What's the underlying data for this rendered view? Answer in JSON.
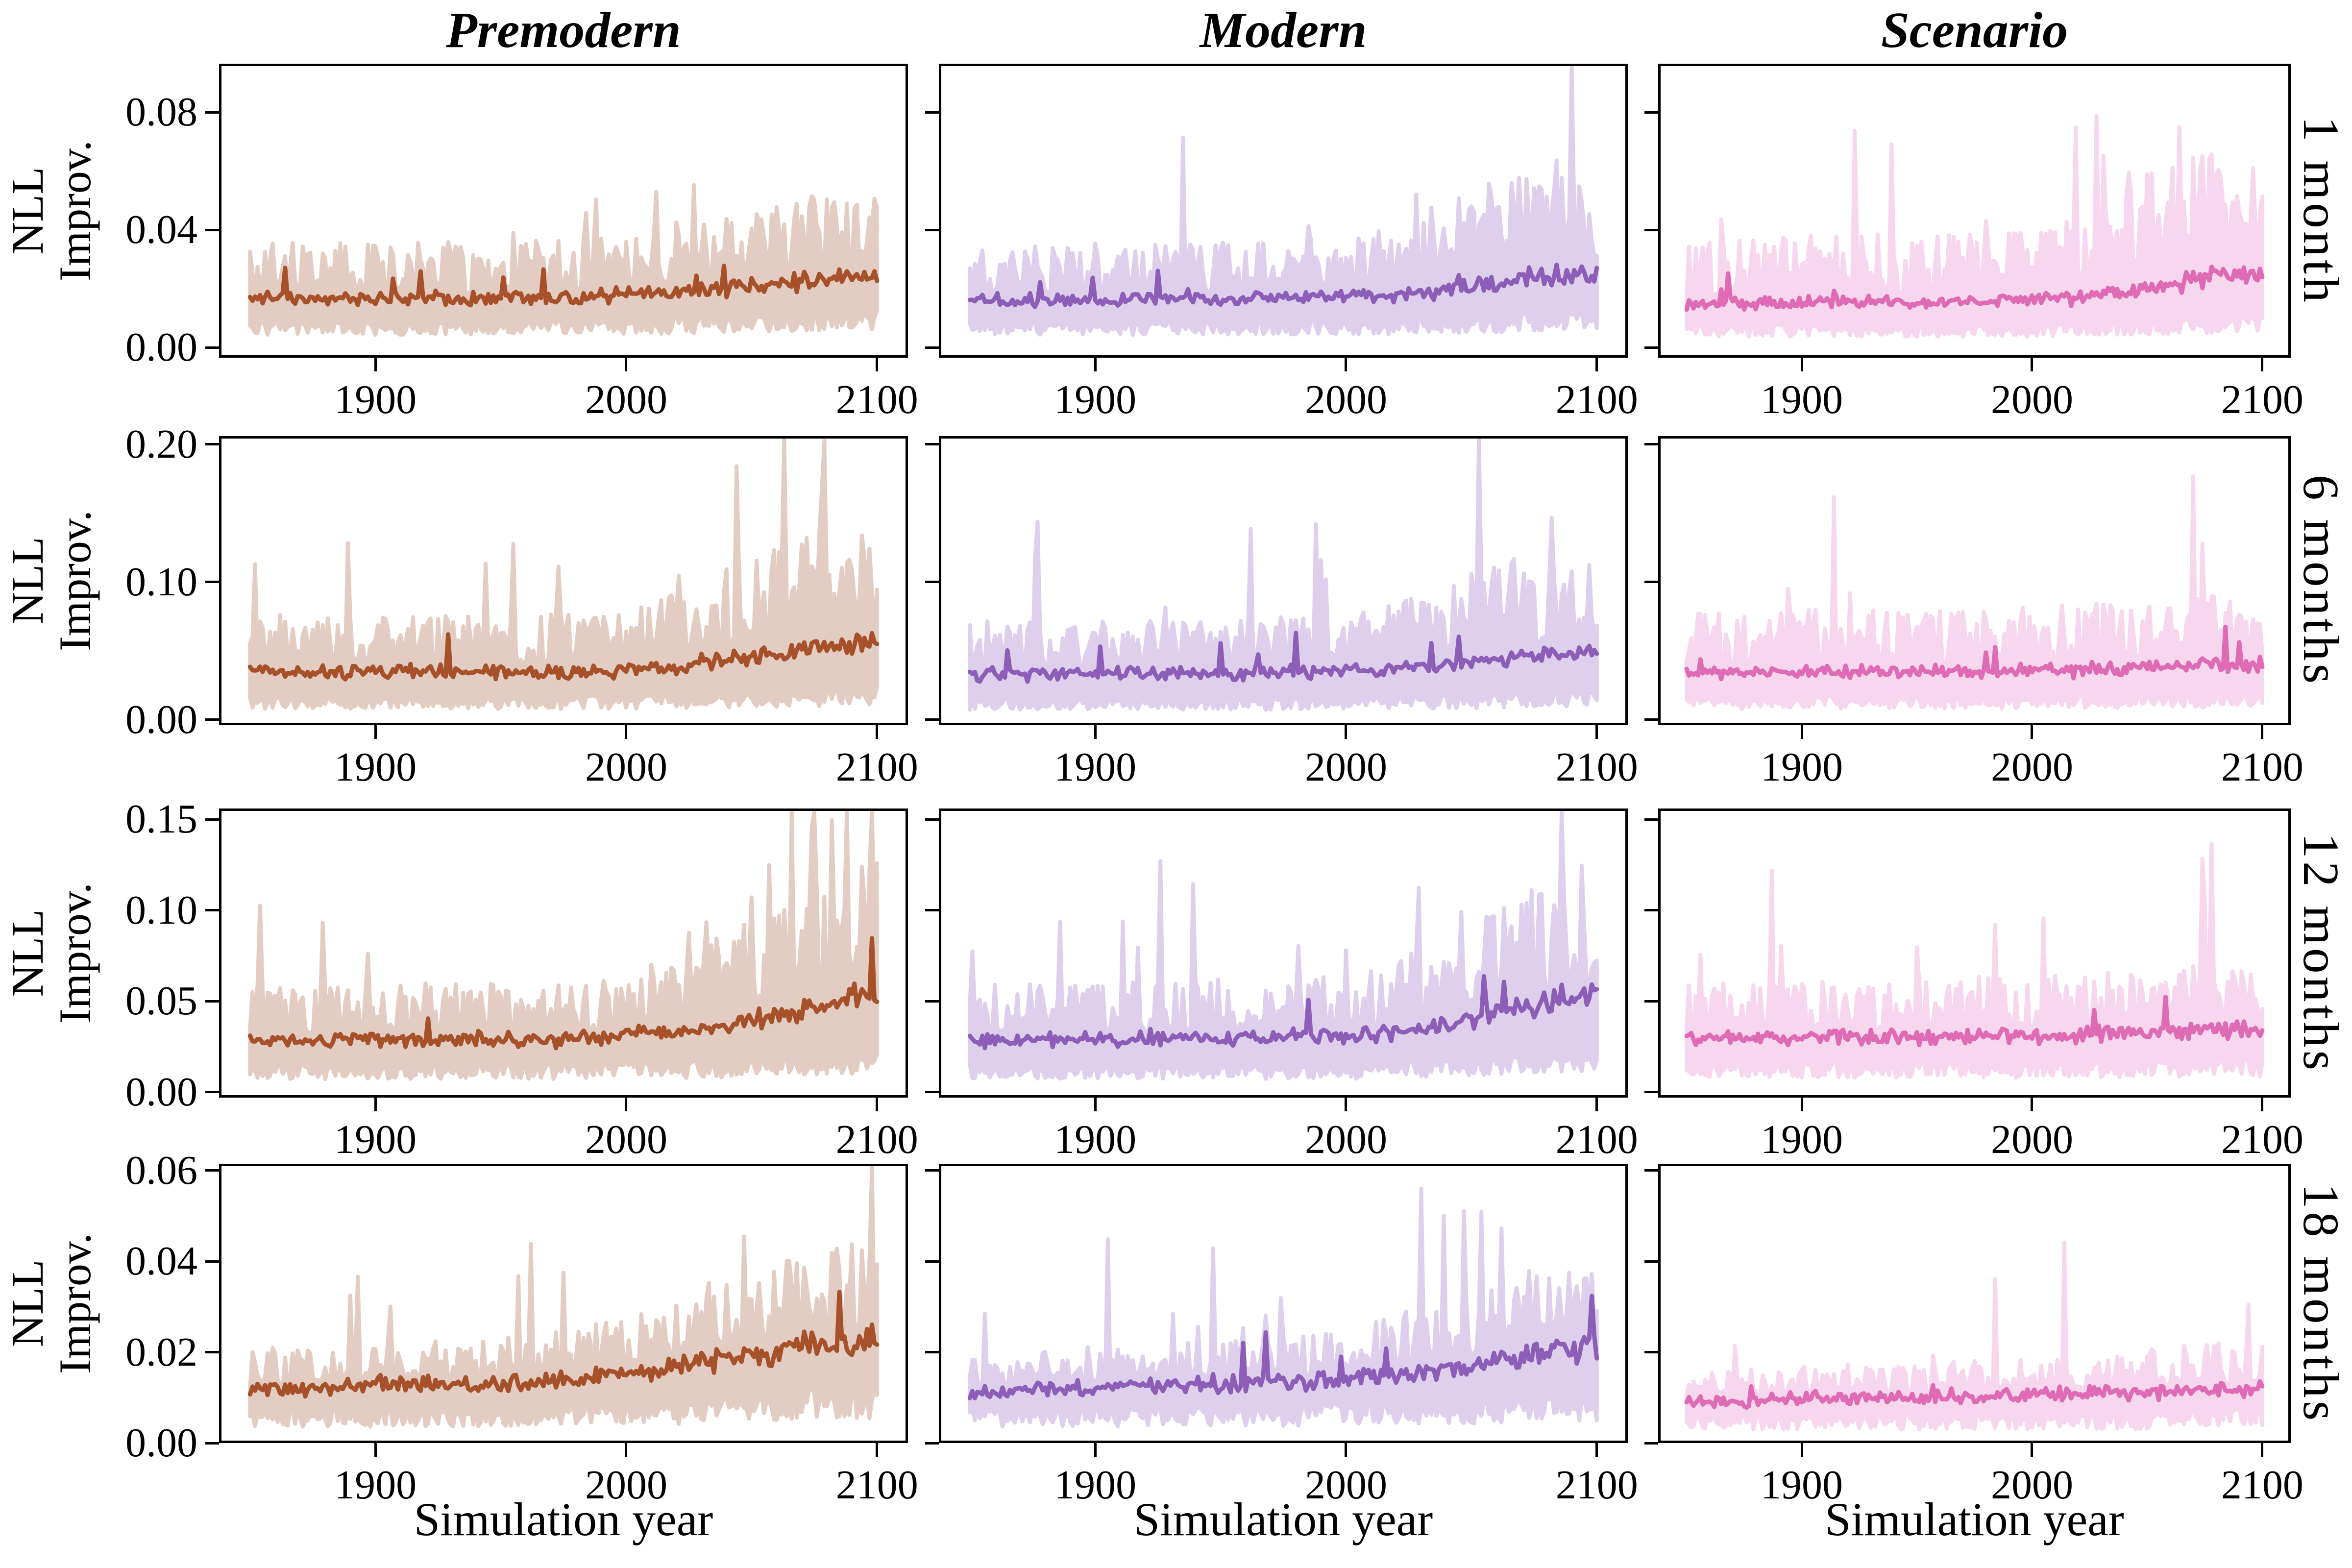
{
  "figure": {
    "background": "#ffffff",
    "text_color": "#000000",
    "ylabel": "NLL\nImprov.",
    "xlabel": "Simulation year",
    "columns": [
      {
        "label": "Premodern",
        "line_color": "#a6512a",
        "band_color": "#e3cdc3"
      },
      {
        "label": "Modern",
        "line_color": "#8c5eb7",
        "band_color": "#ded0ed"
      },
      {
        "label": "Scenario",
        "line_color": "#de6bb4",
        "band_color": "#f6d7ee"
      }
    ],
    "rows": [
      {
        "label": "1 month",
        "ytick_labels": [
          "0.00",
          "0.04",
          "0.08"
        ],
        "ytick_values": [
          0,
          0.04,
          0.08
        ],
        "ylim": [
          -0.0035,
          0.0965
        ]
      },
      {
        "label": "6 months",
        "ytick_labels": [
          "0.00",
          "0.10",
          "0.20"
        ],
        "ytick_values": [
          0,
          0.1,
          0.2
        ],
        "ylim": [
          -0.004,
          0.206
        ]
      },
      {
        "label": "12 months",
        "ytick_labels": [
          "0.00",
          "0.05",
          "0.10",
          "0.15"
        ],
        "ytick_values": [
          0,
          0.05,
          0.1,
          0.15
        ],
        "ylim": [
          -0.003,
          0.156
        ]
      },
      {
        "label": "18 months",
        "ytick_labels": [
          "0.00",
          "0.02",
          "0.04",
          "0.06"
        ],
        "ytick_values": [
          0,
          0.02,
          0.04,
          0.06
        ],
        "ylim": [
          0,
          0.0615
        ]
      }
    ],
    "xticks": {
      "labels": [
        "1900",
        "2000",
        "2100"
      ],
      "values": [
        1900,
        2000,
        2100
      ]
    },
    "xrange": [
      1850,
      2100
    ]
  },
  "chart_data": {
    "type": "line",
    "title": "",
    "xlabel": "Simulation year",
    "ylabel": "NLL Improv.",
    "legend": "none",
    "grid": false,
    "layout": "4 rows (forecast lead times) x 3 columns (eras); noisy annual mean line with shaded min-max band",
    "x_control_points": [
      1850,
      1875,
      1900,
      1925,
      1950,
      1975,
      2000,
      2025,
      2050,
      2075,
      2100
    ],
    "panels": [
      {
        "row": "1 month",
        "column": "Premodern",
        "mean": [
          0.017,
          0.017,
          0.017,
          0.017,
          0.017,
          0.017,
          0.018,
          0.019,
          0.021,
          0.023,
          0.025
        ],
        "band_low": [
          0.007,
          0.007,
          0.007,
          0.007,
          0.007,
          0.007,
          0.007,
          0.008,
          0.008,
          0.009,
          0.01
        ],
        "band_high": [
          0.033,
          0.033,
          0.033,
          0.034,
          0.033,
          0.034,
          0.035,
          0.038,
          0.043,
          0.048,
          0.047
        ]
      },
      {
        "row": "1 month",
        "column": "Modern",
        "mean": [
          0.016,
          0.016,
          0.016,
          0.017,
          0.016,
          0.017,
          0.017,
          0.018,
          0.021,
          0.024,
          0.025
        ],
        "band_low": [
          0.007,
          0.007,
          0.007,
          0.007,
          0.007,
          0.007,
          0.007,
          0.007,
          0.008,
          0.009,
          0.01
        ],
        "band_high": [
          0.032,
          0.032,
          0.033,
          0.033,
          0.033,
          0.034,
          0.034,
          0.04,
          0.052,
          0.063,
          0.052
        ]
      },
      {
        "row": "1 month",
        "column": "Scenario",
        "mean": [
          0.015,
          0.015,
          0.015,
          0.016,
          0.015,
          0.016,
          0.016,
          0.017,
          0.02,
          0.024,
          0.026
        ],
        "band_low": [
          0.006,
          0.006,
          0.006,
          0.006,
          0.006,
          0.006,
          0.006,
          0.007,
          0.007,
          0.008,
          0.009
        ],
        "band_high": [
          0.035,
          0.035,
          0.036,
          0.036,
          0.036,
          0.037,
          0.037,
          0.042,
          0.055,
          0.066,
          0.058
        ]
      },
      {
        "row": "6 months",
        "column": "Premodern",
        "mean": [
          0.035,
          0.034,
          0.035,
          0.035,
          0.034,
          0.035,
          0.036,
          0.04,
          0.046,
          0.052,
          0.056
        ],
        "band_low": [
          0.013,
          0.013,
          0.013,
          0.013,
          0.013,
          0.013,
          0.013,
          0.014,
          0.015,
          0.016,
          0.018
        ],
        "band_high": [
          0.071,
          0.07,
          0.071,
          0.072,
          0.07,
          0.072,
          0.077,
          0.093,
          0.113,
          0.128,
          0.122
        ]
      },
      {
        "row": "6 months",
        "column": "Modern",
        "mean": [
          0.033,
          0.033,
          0.033,
          0.034,
          0.033,
          0.034,
          0.035,
          0.037,
          0.042,
          0.047,
          0.05
        ],
        "band_low": [
          0.012,
          0.012,
          0.012,
          0.012,
          0.012,
          0.012,
          0.012,
          0.013,
          0.014,
          0.015,
          0.016
        ],
        "band_high": [
          0.067,
          0.066,
          0.067,
          0.068,
          0.067,
          0.069,
          0.071,
          0.083,
          0.099,
          0.113,
          0.108
        ]
      },
      {
        "row": "6 months",
        "column": "Scenario",
        "mean": [
          0.035,
          0.034,
          0.035,
          0.035,
          0.035,
          0.035,
          0.036,
          0.036,
          0.038,
          0.04,
          0.04
        ],
        "band_low": [
          0.013,
          0.013,
          0.013,
          0.013,
          0.013,
          0.013,
          0.013,
          0.013,
          0.014,
          0.014,
          0.014
        ],
        "band_high": [
          0.074,
          0.073,
          0.074,
          0.074,
          0.074,
          0.075,
          0.076,
          0.078,
          0.082,
          0.087,
          0.084
        ]
      },
      {
        "row": "12 months",
        "column": "Premodern",
        "mean": [
          0.029,
          0.028,
          0.029,
          0.029,
          0.029,
          0.029,
          0.031,
          0.034,
          0.04,
          0.046,
          0.055
        ],
        "band_low": [
          0.012,
          0.012,
          0.012,
          0.012,
          0.012,
          0.012,
          0.013,
          0.013,
          0.014,
          0.015,
          0.016
        ],
        "band_high": [
          0.055,
          0.054,
          0.055,
          0.056,
          0.055,
          0.057,
          0.061,
          0.072,
          0.088,
          0.1,
          0.12
        ]
      },
      {
        "row": "12 months",
        "column": "Modern",
        "mean": [
          0.029,
          0.029,
          0.029,
          0.03,
          0.029,
          0.03,
          0.031,
          0.033,
          0.04,
          0.048,
          0.055
        ],
        "band_low": [
          0.012,
          0.012,
          0.012,
          0.012,
          0.012,
          0.012,
          0.012,
          0.013,
          0.014,
          0.015,
          0.016
        ],
        "band_high": [
          0.056,
          0.055,
          0.056,
          0.057,
          0.056,
          0.058,
          0.06,
          0.07,
          0.089,
          0.104,
          0.098
        ]
      },
      {
        "row": "12 months",
        "column": "Scenario",
        "mean": [
          0.03,
          0.03,
          0.03,
          0.031,
          0.03,
          0.031,
          0.031,
          0.032,
          0.033,
          0.034,
          0.034
        ],
        "band_low": [
          0.013,
          0.013,
          0.013,
          0.013,
          0.013,
          0.013,
          0.013,
          0.013,
          0.014,
          0.014,
          0.014
        ],
        "band_high": [
          0.057,
          0.056,
          0.057,
          0.058,
          0.057,
          0.058,
          0.059,
          0.061,
          0.063,
          0.066,
          0.064
        ]
      },
      {
        "row": "18 months",
        "column": "Premodern",
        "mean": [
          0.012,
          0.012,
          0.013,
          0.013,
          0.013,
          0.014,
          0.015,
          0.017,
          0.019,
          0.022,
          0.023
        ],
        "band_low": [
          0.006,
          0.006,
          0.006,
          0.006,
          0.006,
          0.007,
          0.007,
          0.007,
          0.008,
          0.009,
          0.009
        ],
        "band_high": [
          0.02,
          0.02,
          0.021,
          0.021,
          0.022,
          0.023,
          0.026,
          0.03,
          0.035,
          0.04,
          0.042
        ]
      },
      {
        "row": "18 months",
        "column": "Modern",
        "mean": [
          0.011,
          0.012,
          0.012,
          0.013,
          0.013,
          0.013,
          0.014,
          0.015,
          0.017,
          0.02,
          0.021
        ],
        "band_low": [
          0.006,
          0.006,
          0.006,
          0.006,
          0.006,
          0.006,
          0.007,
          0.007,
          0.007,
          0.008,
          0.008
        ],
        "band_high": [
          0.019,
          0.019,
          0.02,
          0.02,
          0.021,
          0.022,
          0.023,
          0.027,
          0.031,
          0.036,
          0.035
        ]
      },
      {
        "row": "18 months",
        "column": "Scenario",
        "mean": [
          0.009,
          0.009,
          0.01,
          0.01,
          0.01,
          0.01,
          0.011,
          0.011,
          0.011,
          0.012,
          0.012
        ],
        "band_low": [
          0.005,
          0.005,
          0.005,
          0.005,
          0.005,
          0.005,
          0.005,
          0.005,
          0.005,
          0.006,
          0.006
        ],
        "band_high": [
          0.015,
          0.015,
          0.016,
          0.016,
          0.016,
          0.017,
          0.017,
          0.018,
          0.019,
          0.021,
          0.02
        ]
      }
    ]
  }
}
